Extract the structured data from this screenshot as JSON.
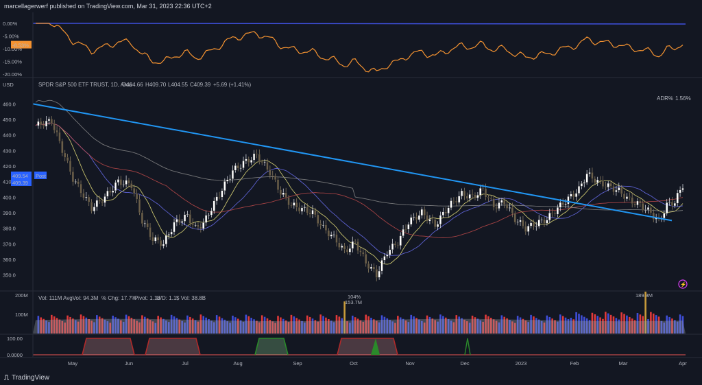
{
  "header": {
    "publisher": "marcellagerwerf published on TradingView.com, Mar 31, 2023 22:36 UTC+2"
  },
  "branding": {
    "label": "TradingView",
    "icon": "tradingview-logo-icon"
  },
  "colors": {
    "bg": "#131722",
    "up": "#ffffff",
    "down": "#6b5f4a",
    "trend": "#2196f3",
    "ma_fast": "#e8e07a",
    "ma_mid": "#6a6ff0",
    "ma_slow": "#c04a4a",
    "ma_long": "#8a8a8a",
    "rel_blue": "#3f51e0",
    "rel_orange": "#f59331",
    "vol_up": "#3f4ed8",
    "vol_down": "#e03a3a"
  },
  "chart_data": [
    {
      "type": "line",
      "pane": "relative-performance",
      "y_ticks": [
        "0.00%",
        "-5.00%",
        "-10.00%",
        "-15.00%",
        "-20.00%"
      ],
      "ylim": [
        -20,
        0
      ],
      "current_label": "-8.53%",
      "series": []
    },
    {
      "type": "candlestick",
      "pane": "price",
      "ylabel": "USD",
      "legend": {
        "name": "SPDR S&P 500 ETF TRUST, 1D, Arca",
        "o": "O404.66",
        "h": "H409.70",
        "l": "L404.55",
        "c": "C409.39",
        "chg": "+5.69 (+1.41%)"
      },
      "adr_label": "ADR%",
      "adr_value": "1.56%",
      "y_ticks": [
        460.0,
        450.0,
        440.0,
        430.0,
        420.0,
        410.0,
        400.0,
        390.0,
        380.0,
        370.0,
        360.0,
        350.0
      ],
      "ylim": [
        345,
        465
      ],
      "price_tag": "409.54",
      "post_tag": "Post",
      "close_tag": "409.39",
      "trendline": {
        "from": [
          "Apr 1",
          460
        ],
        "to": [
          "Mar 28",
          385
        ]
      },
      "keypoints": [
        [
          0,
          446
        ],
        [
          6,
          449
        ],
        [
          14,
          412
        ],
        [
          21,
          393
        ],
        [
          26,
          400
        ],
        [
          31,
          410
        ],
        [
          36,
          408
        ],
        [
          40,
          385
        ],
        [
          44,
          373
        ],
        [
          48,
          370
        ],
        [
          52,
          383
        ],
        [
          57,
          388
        ],
        [
          60,
          380
        ],
        [
          63,
          383
        ],
        [
          66,
          393
        ],
        [
          70,
          405
        ],
        [
          74,
          417
        ],
        [
          78,
          422
        ],
        [
          83,
          427
        ],
        [
          88,
          416
        ],
        [
          92,
          403
        ],
        [
          96,
          395
        ],
        [
          99,
          393
        ],
        [
          104,
          390
        ],
        [
          108,
          380
        ],
        [
          112,
          374
        ],
        [
          116,
          365
        ],
        [
          120,
          371
        ],
        [
          124,
          358
        ],
        [
          128,
          350
        ],
        [
          132,
          365
        ],
        [
          136,
          371
        ],
        [
          140,
          384
        ],
        [
          145,
          390
        ],
        [
          150,
          382
        ],
        [
          155,
          394
        ],
        [
          160,
          402
        ],
        [
          164,
          400
        ],
        [
          168,
          405
        ],
        [
          172,
          394
        ],
        [
          176,
          397
        ],
        [
          180,
          386
        ],
        [
          184,
          380
        ],
        [
          188,
          383
        ],
        [
          192,
          386
        ],
        [
          196,
          393
        ],
        [
          200,
          399
        ],
        [
          204,
          405
        ],
        [
          207,
          415
        ],
        [
          211,
          410
        ],
        [
          215,
          407
        ],
        [
          219,
          404
        ],
        [
          223,
          398
        ],
        [
          227,
          395
        ],
        [
          231,
          390
        ],
        [
          234,
          384
        ],
        [
          237,
          395
        ],
        [
          240,
          397
        ],
        [
          243,
          408
        ]
      ]
    },
    {
      "type": "bar",
      "pane": "volume",
      "y_ticks": [
        "200M",
        "100M"
      ],
      "ylim": [
        0,
        200
      ],
      "legend": {
        "vol": "Vol: 111M",
        "avg": "AvgVol: 94.3M",
        "chg": "% Chg: 17.7%",
        "pivot": "Pivot: 1.18",
        "ud": "U/D: 1.1",
        "dollar": "$ Vol: 38.8B"
      },
      "annotations": [
        "104%",
        "153.7M",
        "189.3M"
      ]
    },
    {
      "type": "area",
      "pane": "oscillator",
      "y_ticks": [
        "100.00",
        "0.0000"
      ],
      "ylim": [
        0,
        100
      ],
      "x_ticks": [
        "May",
        "Jun",
        "Jul",
        "Aug",
        "Sep",
        "Oct",
        "Nov",
        "Dec",
        "2023",
        "Feb",
        "Mar",
        "Apr"
      ]
    }
  ]
}
